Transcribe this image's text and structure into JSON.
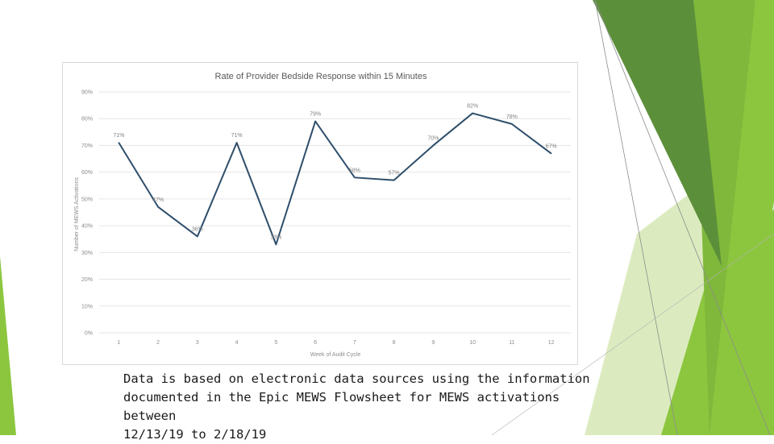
{
  "colors": {
    "accent_green": "#8cc63f",
    "dark_green": "#5c8f3a",
    "light_green": "#d6e8b4",
    "line": "#2e4e6b",
    "grid": "#e6e6e6"
  },
  "caption": {
    "line1": "Data is based on electronic data sources using the information",
    "line2": "documented in the Epic MEWS Flowsheet for MEWS activations between",
    "line3": "12/13/19 to 2/18/19"
  },
  "chart_data": {
    "type": "line",
    "title": "Rate of Provider Bedside Response within 15 Minutes",
    "xlabel": "Week of Audit Cycle",
    "ylabel": "Number of MEWS Activations",
    "categories": [
      "1",
      "2",
      "3",
      "4",
      "5",
      "6",
      "7",
      "8",
      "9",
      "10",
      "11",
      "12"
    ],
    "y_ticks": [
      "0%",
      "10%",
      "20%",
      "30%",
      "40%",
      "50%",
      "60%",
      "70%",
      "80%",
      "90%"
    ],
    "ylim": [
      0,
      90
    ],
    "grid": true,
    "legend": "none",
    "series": [
      {
        "values": [
          71,
          47,
          36,
          71,
          33,
          79,
          58,
          57,
          70,
          82,
          78,
          67
        ],
        "labels": [
          "71%",
          "47%",
          "36%",
          "71%",
          "33%",
          "79%",
          "58%",
          "57%",
          "70%",
          "82%",
          "78%",
          "67%"
        ]
      }
    ]
  }
}
